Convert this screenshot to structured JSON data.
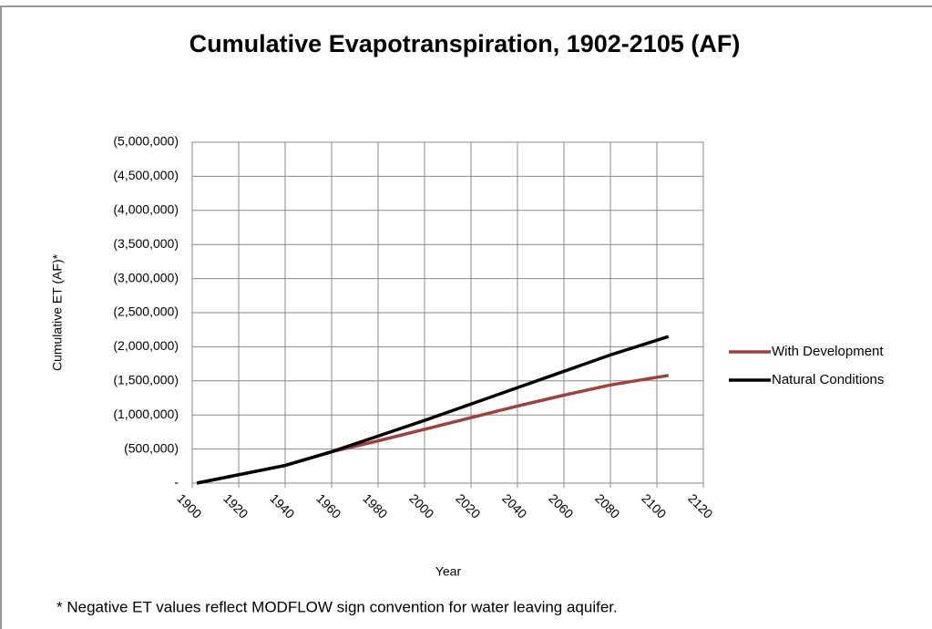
{
  "chart_data": {
    "type": "line",
    "title": "Cumulative Evapotranspiration, 1902-2105 (AF)",
    "x_label": "Year",
    "y_label": "Cumulative ET (AF)*",
    "footnote": "* Negative ET values reflect MODFLOW sign convention for water leaving aquifer.",
    "x": [
      1902,
      1940,
      1960,
      1980,
      2000,
      2020,
      2040,
      2060,
      2080,
      2105
    ],
    "series": [
      {
        "name": "With Development",
        "color": "#a0403c",
        "values": [
          0,
          -260000,
          -460000,
          -620000,
          -790000,
          -960000,
          -1130000,
          -1290000,
          -1440000,
          -1580000
        ]
      },
      {
        "name": "Natural Conditions",
        "color": "#000000",
        "values": [
          0,
          -260000,
          -460000,
          -690000,
          -920000,
          -1160000,
          -1400000,
          -1640000,
          -1880000,
          -2150000
        ]
      }
    ],
    "xlim": [
      1900,
      2120
    ],
    "xticks": [
      1900,
      1920,
      1940,
      1960,
      1980,
      2000,
      2020,
      2040,
      2060,
      2080,
      2100,
      2120
    ],
    "ylim": [
      0,
      -5000000
    ],
    "yticks": [
      {
        "value": 0,
        "label": "-"
      },
      {
        "value": -500000,
        "label": "(500,000)"
      },
      {
        "value": -1000000,
        "label": "(1,000,000)"
      },
      {
        "value": -1500000,
        "label": "(1,500,000)"
      },
      {
        "value": -2000000,
        "label": "(2,000,000)"
      },
      {
        "value": -2500000,
        "label": "(2,500,000)"
      },
      {
        "value": -3000000,
        "label": "(3,000,000)"
      },
      {
        "value": -3500000,
        "label": "(3,500,000)"
      },
      {
        "value": -4000000,
        "label": "(4,000,000)"
      },
      {
        "value": -4500000,
        "label": "(4,500,000)"
      },
      {
        "value": -5000000,
        "label": "(5,000,000)"
      }
    ],
    "grid": true,
    "legend": "right"
  }
}
